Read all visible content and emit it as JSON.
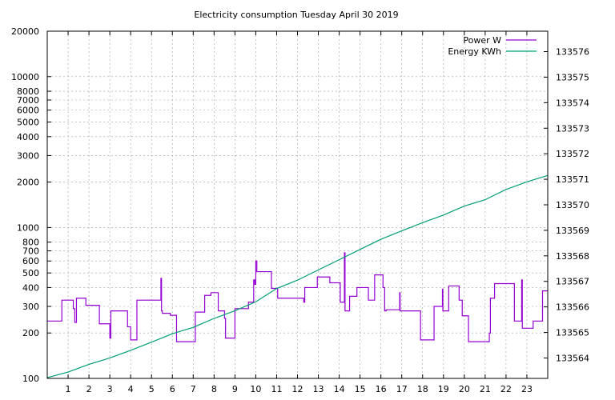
{
  "chart_data": {
    "type": "line",
    "title": "Electricity consumption Tuesday April 30 2019",
    "legend_position": "top-right",
    "grid": true,
    "x_axis": {
      "range": [
        0,
        24
      ],
      "ticks": [
        "1",
        "2",
        "3",
        "4",
        "5",
        "6",
        "7",
        "8",
        "9",
        "10",
        "11",
        "12",
        "13",
        "14",
        "15",
        "16",
        "17",
        "18",
        "19",
        "20",
        "21",
        "22",
        "23"
      ]
    },
    "y_axis_left": {
      "scale": "log",
      "range": [
        100,
        20000
      ],
      "ticks": [
        {
          "value": 100,
          "label": "100"
        },
        {
          "value": 200,
          "label": "200"
        },
        {
          "value": 300,
          "label": "300"
        },
        {
          "value": 400,
          "label": "400"
        },
        {
          "value": 500,
          "label": "500"
        },
        {
          "value": 600,
          "label": "600"
        },
        {
          "value": 700,
          "label": "700"
        },
        {
          "value": 800,
          "label": "800"
        },
        {
          "value": 1000,
          "label": "1000"
        },
        {
          "value": 2000,
          "label": "2000"
        },
        {
          "value": 3000,
          "label": "3000"
        },
        {
          "value": 4000,
          "label": "4000"
        },
        {
          "value": 5000,
          "label": "5000"
        },
        {
          "value": 6000,
          "label": "6000"
        },
        {
          "value": 7000,
          "label": "7000"
        },
        {
          "value": 8000,
          "label": "8000"
        },
        {
          "value": 10000,
          "label": "10000"
        },
        {
          "value": 20000,
          "label": "20000"
        }
      ]
    },
    "y_axis_right": {
      "scale": "linear",
      "range": [
        133563.2,
        133576.8
      ],
      "ticks": [
        {
          "value": 133564,
          "label": "133564"
        },
        {
          "value": 133565,
          "label": "133565"
        },
        {
          "value": 133566,
          "label": "133566"
        },
        {
          "value": 133567,
          "label": "133567"
        },
        {
          "value": 133568,
          "label": "133568"
        },
        {
          "value": 133569,
          "label": "133569"
        },
        {
          "value": 133570,
          "label": "133570"
        },
        {
          "value": 133571,
          "label": "133571"
        },
        {
          "value": 133572,
          "label": "133572"
        },
        {
          "value": 133573,
          "label": "133573"
        },
        {
          "value": 133574,
          "label": "133574"
        },
        {
          "value": 133575,
          "label": "133575"
        },
        {
          "value": 133576,
          "label": "133576"
        }
      ]
    },
    "series": [
      {
        "name": "Power W",
        "axis": "left",
        "color": "#9400d3",
        "points": [
          [
            0.0,
            240
          ],
          [
            0.7,
            240
          ],
          [
            0.7,
            330
          ],
          [
            1.25,
            330
          ],
          [
            1.25,
            290
          ],
          [
            1.32,
            290
          ],
          [
            1.32,
            235
          ],
          [
            1.4,
            235
          ],
          [
            1.4,
            340
          ],
          [
            1.85,
            340
          ],
          [
            1.85,
            305
          ],
          [
            2.5,
            305
          ],
          [
            2.5,
            230
          ],
          [
            3.0,
            230
          ],
          [
            3.0,
            185
          ],
          [
            3.05,
            185
          ],
          [
            3.05,
            280
          ],
          [
            3.85,
            280
          ],
          [
            3.85,
            220
          ],
          [
            4.0,
            220
          ],
          [
            4.0,
            180
          ],
          [
            4.3,
            180
          ],
          [
            4.3,
            330
          ],
          [
            5.45,
            330
          ],
          [
            5.45,
            460
          ],
          [
            5.48,
            460
          ],
          [
            5.48,
            280
          ],
          [
            5.52,
            280
          ],
          [
            5.52,
            270
          ],
          [
            5.9,
            270
          ],
          [
            5.9,
            262
          ],
          [
            6.2,
            262
          ],
          [
            6.2,
            175
          ],
          [
            7.1,
            175
          ],
          [
            7.1,
            275
          ],
          [
            7.55,
            275
          ],
          [
            7.55,
            355
          ],
          [
            7.85,
            355
          ],
          [
            7.85,
            370
          ],
          [
            8.2,
            370
          ],
          [
            8.2,
            280
          ],
          [
            8.5,
            280
          ],
          [
            8.5,
            250
          ],
          [
            8.55,
            250
          ],
          [
            8.55,
            185
          ],
          [
            9.0,
            185
          ],
          [
            9.0,
            290
          ],
          [
            9.65,
            290
          ],
          [
            9.65,
            320
          ],
          [
            9.9,
            320
          ],
          [
            9.9,
            450
          ],
          [
            9.95,
            450
          ],
          [
            9.95,
            420
          ],
          [
            10.0,
            420
          ],
          [
            10.0,
            600
          ],
          [
            10.05,
            600
          ],
          [
            10.05,
            510
          ],
          [
            10.75,
            510
          ],
          [
            10.75,
            395
          ],
          [
            11.05,
            395
          ],
          [
            11.05,
            340
          ],
          [
            12.3,
            340
          ],
          [
            12.3,
            320
          ],
          [
            12.35,
            320
          ],
          [
            12.35,
            400
          ],
          [
            12.95,
            400
          ],
          [
            12.95,
            470
          ],
          [
            13.55,
            470
          ],
          [
            13.55,
            430
          ],
          [
            14.05,
            430
          ],
          [
            14.05,
            320
          ],
          [
            14.25,
            320
          ],
          [
            14.25,
            680
          ],
          [
            14.28,
            680
          ],
          [
            14.28,
            280
          ],
          [
            14.5,
            280
          ],
          [
            14.5,
            350
          ],
          [
            14.85,
            350
          ],
          [
            14.85,
            400
          ],
          [
            15.4,
            400
          ],
          [
            15.4,
            330
          ],
          [
            15.7,
            330
          ],
          [
            15.7,
            485
          ],
          [
            16.1,
            485
          ],
          [
            16.1,
            400
          ],
          [
            16.18,
            400
          ],
          [
            16.18,
            280
          ],
          [
            16.25,
            280
          ],
          [
            16.25,
            285
          ],
          [
            16.9,
            285
          ],
          [
            16.9,
            370
          ],
          [
            16.92,
            370
          ],
          [
            16.92,
            280
          ],
          [
            17.9,
            280
          ],
          [
            17.9,
            180
          ],
          [
            18.55,
            180
          ],
          [
            18.55,
            300
          ],
          [
            18.95,
            300
          ],
          [
            18.95,
            390
          ],
          [
            18.97,
            390
          ],
          [
            18.97,
            280
          ],
          [
            19.25,
            280
          ],
          [
            19.25,
            410
          ],
          [
            19.75,
            410
          ],
          [
            19.75,
            330
          ],
          [
            19.9,
            330
          ],
          [
            19.9,
            260
          ],
          [
            20.2,
            260
          ],
          [
            20.2,
            175
          ],
          [
            21.2,
            175
          ],
          [
            21.2,
            200
          ],
          [
            21.25,
            200
          ],
          [
            21.25,
            340
          ],
          [
            21.45,
            340
          ],
          [
            21.45,
            425
          ],
          [
            22.4,
            425
          ],
          [
            22.4,
            240
          ],
          [
            22.75,
            240
          ],
          [
            22.75,
            450
          ],
          [
            22.78,
            450
          ],
          [
            22.78,
            215
          ],
          [
            23.3,
            215
          ],
          [
            23.3,
            240
          ],
          [
            23.75,
            240
          ],
          [
            23.75,
            380
          ],
          [
            24.0,
            380
          ]
        ]
      },
      {
        "name": "Energy KWh",
        "axis": "right",
        "color": "#009e73",
        "points": [
          [
            0.0,
            133563.23
          ],
          [
            1.0,
            133563.45
          ],
          [
            2.0,
            133563.75
          ],
          [
            3.0,
            133564.0
          ],
          [
            4.0,
            133564.3
          ],
          [
            5.0,
            133564.62
          ],
          [
            6.0,
            133564.95
          ],
          [
            7.0,
            133565.2
          ],
          [
            8.0,
            133565.55
          ],
          [
            9.0,
            133565.85
          ],
          [
            10.0,
            133566.2
          ],
          [
            11.0,
            133566.72
          ],
          [
            12.0,
            133567.05
          ],
          [
            13.0,
            133567.45
          ],
          [
            14.0,
            133567.85
          ],
          [
            15.0,
            133568.25
          ],
          [
            16.0,
            133568.65
          ],
          [
            17.0,
            133568.98
          ],
          [
            18.0,
            133569.3
          ],
          [
            19.0,
            133569.6
          ],
          [
            20.0,
            133569.95
          ],
          [
            21.0,
            133570.2
          ],
          [
            22.0,
            133570.6
          ],
          [
            23.0,
            133570.9
          ],
          [
            24.0,
            133571.15
          ]
        ]
      }
    ]
  }
}
